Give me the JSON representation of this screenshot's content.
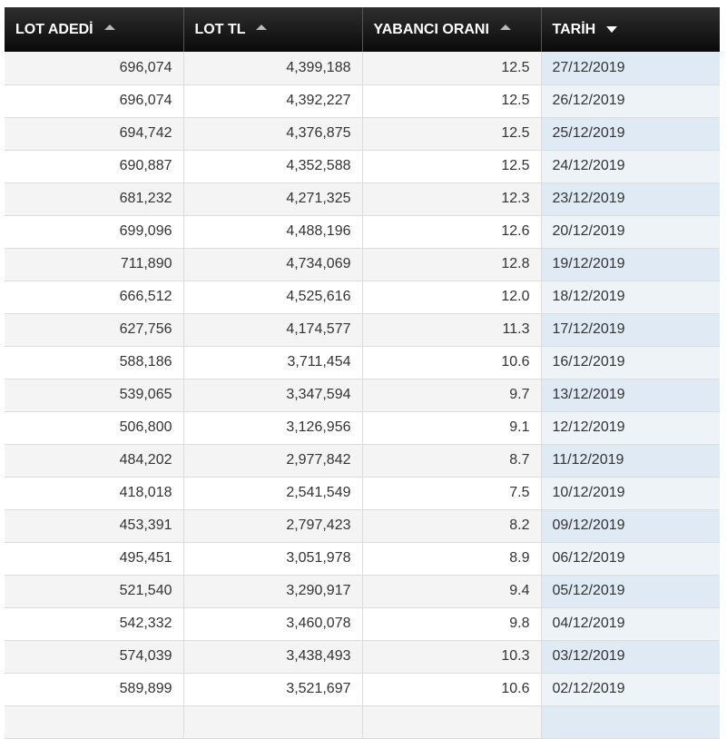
{
  "headers": [
    {
      "label": "LOT ADEDİ",
      "sort": "up"
    },
    {
      "label": "LOT TL",
      "sort": "up"
    },
    {
      "label": "YABANCI ORANI",
      "sort": "up"
    },
    {
      "label": "TARİH",
      "sort": "down"
    }
  ],
  "rows": [
    {
      "lot_adedi": "696,074",
      "lot_tl": "4,399,188",
      "yabanci_orani": "12.5",
      "tarih": "27/12/2019"
    },
    {
      "lot_adedi": "696,074",
      "lot_tl": "4,392,227",
      "yabanci_orani": "12.5",
      "tarih": "26/12/2019"
    },
    {
      "lot_adedi": "694,742",
      "lot_tl": "4,376,875",
      "yabanci_orani": "12.5",
      "tarih": "25/12/2019"
    },
    {
      "lot_adedi": "690,887",
      "lot_tl": "4,352,588",
      "yabanci_orani": "12.5",
      "tarih": "24/12/2019"
    },
    {
      "lot_adedi": "681,232",
      "lot_tl": "4,271,325",
      "yabanci_orani": "12.3",
      "tarih": "23/12/2019"
    },
    {
      "lot_adedi": "699,096",
      "lot_tl": "4,488,196",
      "yabanci_orani": "12.6",
      "tarih": "20/12/2019"
    },
    {
      "lot_adedi": "711,890",
      "lot_tl": "4,734,069",
      "yabanci_orani": "12.8",
      "tarih": "19/12/2019"
    },
    {
      "lot_adedi": "666,512",
      "lot_tl": "4,525,616",
      "yabanci_orani": "12.0",
      "tarih": "18/12/2019"
    },
    {
      "lot_adedi": "627,756",
      "lot_tl": "4,174,577",
      "yabanci_orani": "11.3",
      "tarih": "17/12/2019"
    },
    {
      "lot_adedi": "588,186",
      "lot_tl": "3,711,454",
      "yabanci_orani": "10.6",
      "tarih": "16/12/2019"
    },
    {
      "lot_adedi": "539,065",
      "lot_tl": "3,347,594",
      "yabanci_orani": "9.7",
      "tarih": "13/12/2019"
    },
    {
      "lot_adedi": "506,800",
      "lot_tl": "3,126,956",
      "yabanci_orani": "9.1",
      "tarih": "12/12/2019"
    },
    {
      "lot_adedi": "484,202",
      "lot_tl": "2,977,842",
      "yabanci_orani": "8.7",
      "tarih": "11/12/2019"
    },
    {
      "lot_adedi": "418,018",
      "lot_tl": "2,541,549",
      "yabanci_orani": "7.5",
      "tarih": "10/12/2019"
    },
    {
      "lot_adedi": "453,391",
      "lot_tl": "2,797,423",
      "yabanci_orani": "8.2",
      "tarih": "09/12/2019"
    },
    {
      "lot_adedi": "495,451",
      "lot_tl": "3,051,978",
      "yabanci_orani": "8.9",
      "tarih": "06/12/2019"
    },
    {
      "lot_adedi": "521,540",
      "lot_tl": "3,290,917",
      "yabanci_orani": "9.4",
      "tarih": "05/12/2019"
    },
    {
      "lot_adedi": "542,332",
      "lot_tl": "3,460,078",
      "yabanci_orani": "9.8",
      "tarih": "04/12/2019"
    },
    {
      "lot_adedi": "574,039",
      "lot_tl": "3,438,493",
      "yabanci_orani": "10.3",
      "tarih": "03/12/2019"
    },
    {
      "lot_adedi": "589,899",
      "lot_tl": "3,521,697",
      "yabanci_orani": "10.6",
      "tarih": "02/12/2019"
    },
    {
      "lot_adedi": "",
      "lot_tl": "",
      "yabanci_orani": "",
      "tarih": ""
    }
  ]
}
